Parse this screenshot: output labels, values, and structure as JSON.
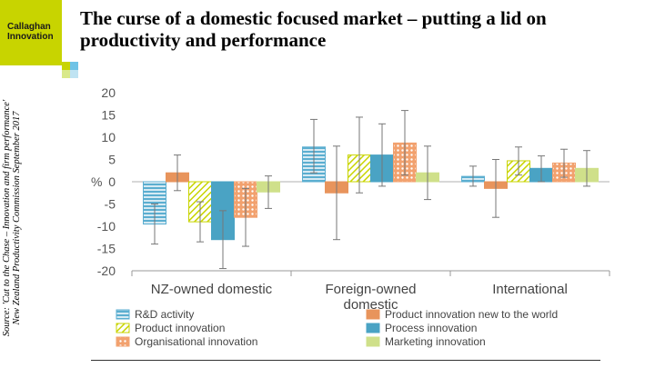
{
  "slide": {
    "logo_line1": "Callaghan",
    "logo_line2": "Innovation",
    "title": "The curse of a domestic focused market – putting a lid on productivity and performance",
    "source_line1": "Source: 'Cut to the Chase – Innovation and firm performance'",
    "source_line2": "New Zealand Productivity Commission September 2017"
  },
  "colors": {
    "brand_green": "#c8d400",
    "brand_blue": "#6fc3e6",
    "rd": "#5baed0",
    "product_new": "#e8945c",
    "product": "#c8d400",
    "process": "#4aa3c4",
    "organisational": "#f2a16e",
    "marketing": "#cfe08a"
  },
  "chart_data": {
    "type": "bar",
    "ylabel": "%",
    "ylim": [
      -20,
      20
    ],
    "yticks": [
      "20",
      "15",
      "10",
      "5",
      "0",
      "-5",
      "-10",
      "-15",
      "-20"
    ],
    "categories": [
      {
        "lines": [
          "NZ-owned domestic"
        ]
      },
      {
        "lines": [
          "Foreign-owned",
          "domestic"
        ]
      },
      {
        "lines": [
          "International"
        ]
      }
    ],
    "series": [
      {
        "name": "R&D activity",
        "pattern": "hlines",
        "color": "#5baed0",
        "values": [
          -9.5,
          7.8,
          1.2
        ],
        "err_low": [
          -14,
          2,
          -1
        ],
        "err_high": [
          -5,
          14,
          3.5
        ]
      },
      {
        "name": "Product innovation new to the world",
        "pattern": "solid",
        "color": "#e8945c",
        "values": [
          2,
          -2.5,
          -1.5
        ],
        "err_low": [
          -2,
          -13,
          -8
        ],
        "err_high": [
          6,
          8,
          5
        ]
      },
      {
        "name": "Product innovation",
        "pattern": "diag",
        "color": "#c8d400",
        "values": [
          -9,
          6,
          4.7
        ],
        "err_low": [
          -13.5,
          -2.5,
          1.5
        ],
        "err_high": [
          -4.5,
          14.5,
          7.8
        ]
      },
      {
        "name": "Process innovation",
        "pattern": "solid",
        "color": "#4aa3c4",
        "values": [
          -13,
          6,
          3
        ],
        "err_low": [
          -19.5,
          -1,
          0
        ],
        "err_high": [
          -6.5,
          13,
          5.8
        ]
      },
      {
        "name": "Organisational innovation",
        "pattern": "dots",
        "color": "#f2a16e",
        "values": [
          -8,
          8.7,
          4.2
        ],
        "err_low": [
          -14.5,
          1.5,
          1
        ],
        "err_high": [
          -1.5,
          16,
          7.3
        ]
      },
      {
        "name": "Marketing innovation",
        "pattern": "solid",
        "color": "#cfe08a",
        "values": [
          -2.3,
          2,
          3
        ],
        "err_low": [
          -6,
          -4,
          -1
        ],
        "err_high": [
          1.3,
          8,
          7
        ]
      }
    ],
    "legend_position": "bottom",
    "grid": false
  }
}
